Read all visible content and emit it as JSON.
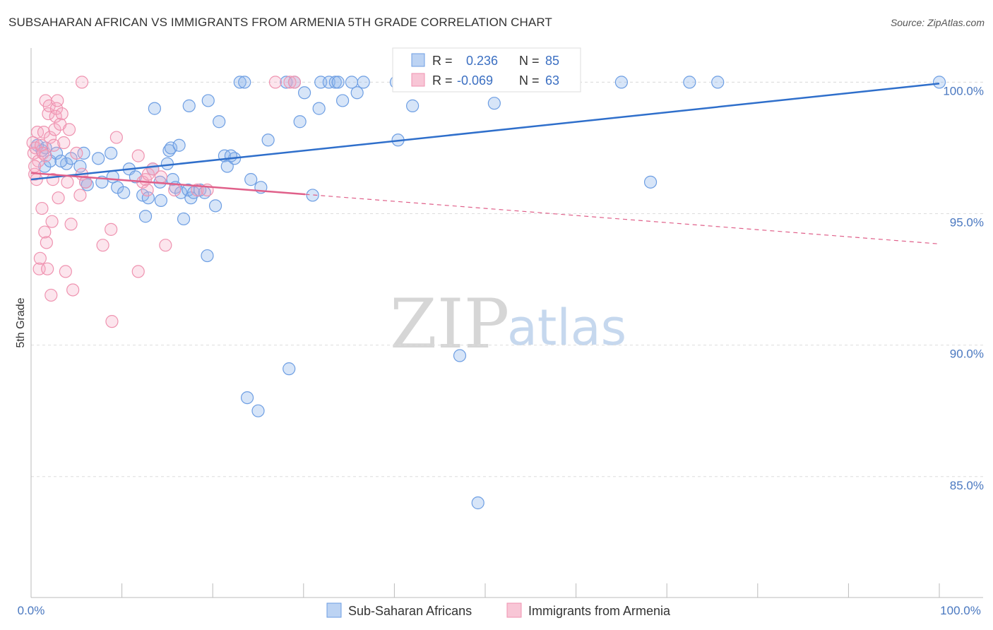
{
  "title": "SUBSAHARAN AFRICAN VS IMMIGRANTS FROM ARMENIA 5TH GRADE CORRELATION CHART",
  "source": "Source: ZipAtlas.com",
  "watermark": {
    "zip": "ZIP",
    "atlas": "atlas"
  },
  "colors": {
    "blue": "#6d9ee3",
    "blue_line": "#2f6fcb",
    "pink": "#ef93b0",
    "pink_line": "#e0608a",
    "tick": "#4a78c0",
    "grid": "#dddddd"
  },
  "stats": [
    {
      "r_label": "R =",
      "r_value": "0.236",
      "n_label": "N =",
      "n_value": "85"
    },
    {
      "r_label": "R =",
      "r_value": "-0.069",
      "n_label": "N =",
      "n_value": "63"
    }
  ],
  "chart_data": {
    "type": "scatter",
    "title": "SUBSAHARAN AFRICAN VS IMMIGRANTS FROM ARMENIA 5TH GRADE CORRELATION CHART",
    "xlabel": "",
    "ylabel": "5th Grade",
    "xlim": [
      0,
      100
    ],
    "ylim": [
      80.4,
      101.3
    ],
    "x_tick_labels": [
      "0.0%",
      "100.0%"
    ],
    "y_ticks": [
      85,
      90,
      95,
      100
    ],
    "y_tick_labels": [
      "85.0%",
      "90.0%",
      "95.0%",
      "100.0%"
    ],
    "grid": true,
    "legend_position": "bottom-center",
    "series": [
      {
        "name": "Sub-Saharan Africans",
        "color": "#6d9ee3",
        "trend": {
          "x": [
            0,
            100
          ],
          "y": [
            96.3,
            99.95
          ],
          "dashed_from_x": null
        },
        "points": [
          [
            0.7,
            97.6
          ],
          [
            1.2,
            97.4
          ],
          [
            1.6,
            97.5
          ],
          [
            1.5,
            96.8
          ],
          [
            2.1,
            97.0
          ],
          [
            2.8,
            97.3
          ],
          [
            3.9,
            96.9
          ],
          [
            4.4,
            97.1
          ],
          [
            5.4,
            96.8
          ],
          [
            5.8,
            97.3
          ],
          [
            6.0,
            96.2
          ],
          [
            6.2,
            96.1
          ],
          [
            7.4,
            97.1
          ],
          [
            7.8,
            96.2
          ],
          [
            8.8,
            97.3
          ],
          [
            9.5,
            96.0
          ],
          [
            10.2,
            95.8
          ],
          [
            10.8,
            96.7
          ],
          [
            11.5,
            96.4
          ],
          [
            12.3,
            95.7
          ],
          [
            12.6,
            94.9
          ],
          [
            12.9,
            95.6
          ],
          [
            13.4,
            96.7
          ],
          [
            14.2,
            96.2
          ],
          [
            14.3,
            95.5
          ],
          [
            15.0,
            96.9
          ],
          [
            15.2,
            97.4
          ],
          [
            15.4,
            97.5
          ],
          [
            15.6,
            96.3
          ],
          [
            15.9,
            96.0
          ],
          [
            16.3,
            97.6
          ],
          [
            16.5,
            95.8
          ],
          [
            16.8,
            94.8
          ],
          [
            17.3,
            95.9
          ],
          [
            17.4,
            99.1
          ],
          [
            17.6,
            95.6
          ],
          [
            17.9,
            95.8
          ],
          [
            18.6,
            95.9
          ],
          [
            19.1,
            95.8
          ],
          [
            19.4,
            93.4
          ],
          [
            19.5,
            99.3
          ],
          [
            20.3,
            95.3
          ],
          [
            20.7,
            98.5
          ],
          [
            21.3,
            97.2
          ],
          [
            21.6,
            96.8
          ],
          [
            22.4,
            97.1
          ],
          [
            23.0,
            100.0
          ],
          [
            23.5,
            100.0
          ],
          [
            23.8,
            88.0
          ],
          [
            24.2,
            96.3
          ],
          [
            25.3,
            96.0
          ],
          [
            25.0,
            87.5
          ],
          [
            26.1,
            97.8
          ],
          [
            28.1,
            100.0
          ],
          [
            28.4,
            89.1
          ],
          [
            29.0,
            100.0
          ],
          [
            29.6,
            98.5
          ],
          [
            30.1,
            99.6
          ],
          [
            31.0,
            95.7
          ],
          [
            31.7,
            99.0
          ],
          [
            31.9,
            100.0
          ],
          [
            32.8,
            100.0
          ],
          [
            33.5,
            100.0
          ],
          [
            33.8,
            100.0
          ],
          [
            34.3,
            99.3
          ],
          [
            35.3,
            100.0
          ],
          [
            35.9,
            99.6
          ],
          [
            36.6,
            100.0
          ],
          [
            40.2,
            100.0
          ],
          [
            40.4,
            97.8
          ],
          [
            42.0,
            99.1
          ],
          [
            47.2,
            89.6
          ],
          [
            49.2,
            84.0
          ],
          [
            51.0,
            99.2
          ],
          [
            53.1,
            100.0
          ],
          [
            59.1,
            100.0
          ],
          [
            65.0,
            100.0
          ],
          [
            68.2,
            96.2
          ],
          [
            72.5,
            100.0
          ],
          [
            75.6,
            100.0
          ],
          [
            100.0,
            100.0
          ],
          [
            9.0,
            96.4
          ],
          [
            3.3,
            97.0
          ],
          [
            22.0,
            97.2
          ],
          [
            13.6,
            99.0
          ]
        ]
      },
      {
        "name": "Immigrants from Armenia",
        "color": "#ef93b0",
        "trend": {
          "x": [
            0,
            100
          ],
          "y": [
            96.55,
            93.85
          ],
          "dashed_from_x": 30.2
        },
        "points": [
          [
            0.2,
            97.7
          ],
          [
            0.3,
            97.3
          ],
          [
            0.4,
            96.5
          ],
          [
            0.5,
            97.5
          ],
          [
            0.6,
            96.3
          ],
          [
            0.7,
            98.1
          ],
          [
            0.8,
            97.0
          ],
          [
            0.9,
            92.9
          ],
          [
            1.0,
            93.3
          ],
          [
            1.1,
            97.6
          ],
          [
            1.2,
            95.2
          ],
          [
            1.3,
            97.3
          ],
          [
            1.4,
            98.1
          ],
          [
            1.5,
            94.3
          ],
          [
            1.6,
            99.3
          ],
          [
            1.7,
            93.9
          ],
          [
            1.8,
            92.9
          ],
          [
            1.9,
            98.8
          ],
          [
            2.0,
            99.1
          ],
          [
            2.1,
            97.9
          ],
          [
            2.2,
            91.9
          ],
          [
            2.3,
            94.7
          ],
          [
            2.4,
            96.3
          ],
          [
            2.5,
            97.6
          ],
          [
            2.6,
            98.2
          ],
          [
            2.7,
            98.7
          ],
          [
            2.8,
            99.0
          ],
          [
            3.0,
            95.6
          ],
          [
            3.2,
            98.4
          ],
          [
            3.4,
            98.8
          ],
          [
            3.6,
            97.7
          ],
          [
            3.8,
            92.8
          ],
          [
            4.0,
            96.2
          ],
          [
            4.2,
            98.2
          ],
          [
            4.4,
            94.6
          ],
          [
            4.6,
            92.1
          ],
          [
            5.0,
            97.3
          ],
          [
            5.4,
            95.7
          ],
          [
            5.6,
            96.5
          ],
          [
            7.9,
            93.8
          ],
          [
            8.8,
            94.4
          ],
          [
            8.9,
            90.9
          ],
          [
            9.4,
            97.9
          ],
          [
            11.8,
            97.2
          ],
          [
            11.8,
            92.8
          ],
          [
            12.3,
            96.2
          ],
          [
            12.6,
            96.3
          ],
          [
            12.8,
            95.9
          ],
          [
            12.9,
            96.5
          ],
          [
            13.4,
            96.7
          ],
          [
            14.3,
            96.4
          ],
          [
            14.8,
            93.8
          ],
          [
            15.8,
            95.9
          ],
          [
            18.3,
            95.9
          ],
          [
            19.4,
            95.9
          ],
          [
            26.9,
            100.0
          ],
          [
            28.5,
            100.0
          ],
          [
            29.0,
            100.0
          ],
          [
            5.6,
            100.0
          ],
          [
            1.6,
            97.2
          ],
          [
            0.4,
            96.8
          ],
          [
            2.9,
            99.3
          ],
          [
            6.0,
            96.2
          ]
        ]
      }
    ]
  },
  "legend": [
    {
      "label": "Sub-Saharan Africans"
    },
    {
      "label": "Immigrants from Armenia"
    }
  ]
}
